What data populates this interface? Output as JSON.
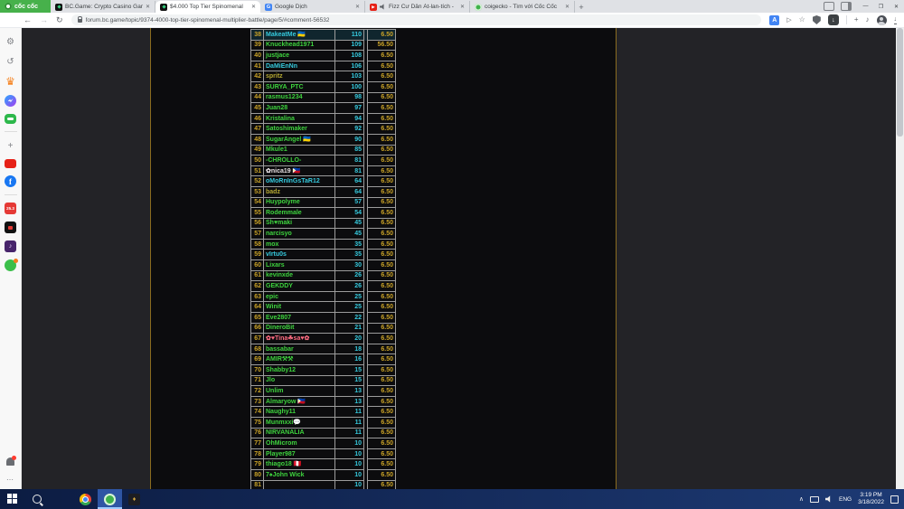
{
  "browser": {
    "brand": "cốc cốc",
    "tabs": [
      {
        "label": "BC.Game: Crypto Casino Gam",
        "favicon": "bcgame",
        "active": false,
        "audio": false
      },
      {
        "label": "$4.000 Top Tier Spinomenal",
        "favicon": "bcgame",
        "active": true,
        "audio": false
      },
      {
        "label": "Google Dịch",
        "favicon": "translate",
        "active": false,
        "audio": false
      },
      {
        "label": "Fizz Cư Dân Át-lan-tích -",
        "favicon": "youtube",
        "active": false,
        "audio": true
      },
      {
        "label": "coigecko - Tìm với Cốc Cốc",
        "favicon": "search",
        "active": false,
        "audio": false
      }
    ],
    "new_tab_label": "+",
    "strip_icons": [
      "screencast-icon",
      "panel-icon"
    ],
    "window_controls": [
      {
        "name": "minimize-button",
        "glyph": "—"
      },
      {
        "name": "maximize-button",
        "glyph": "❐"
      },
      {
        "name": "close-button",
        "glyph": "✕"
      }
    ],
    "toolbar": {
      "back_glyph": "←",
      "forward_glyph": "→",
      "reload_glyph": "↻",
      "url": "forum.bc.game/topic/9374-4000-top-tier-spinomenal-multiplier-battle/page/5/#comment-56532",
      "icons": [
        "translate-icon",
        "share-icon",
        "bookmark-star-icon",
        "adblock-shield-icon",
        "download-button-icon",
        "divider",
        "extension-icon",
        "media-icon",
        "profile-avatar",
        "downloads-tray-icon"
      ]
    }
  },
  "sidebar": {
    "top_icons": [
      "settings-icon",
      "history-icon",
      "crown-icon",
      "messenger-icon",
      "games-icon",
      "divider",
      "add-icon",
      "youtube-icon",
      "facebook-icon",
      "divider",
      "promo-25-3-icon",
      "video-app-icon",
      "music-app-icon",
      "chat-app-icon"
    ],
    "bottom_icons": [
      "bell-icon",
      "more-icon"
    ]
  },
  "leaderboard": {
    "rows": [
      {
        "rank": "38",
        "user": "MakeatMe 🇺🇦",
        "score": "110",
        "value": "6.50",
        "color": "cyan",
        "highlight": true
      },
      {
        "rank": "39",
        "user": "Knuckhead1971",
        "score": "109",
        "value": "56.50",
        "color": "green"
      },
      {
        "rank": "40",
        "user": "justjace",
        "score": "108",
        "value": "6.50",
        "color": "green"
      },
      {
        "rank": "41",
        "user": "DaMiEnNn",
        "score": "106",
        "value": "6.50",
        "color": "cyan"
      },
      {
        "rank": "42",
        "user": "spritz",
        "score": "103",
        "value": "6.50",
        "color": "olive"
      },
      {
        "rank": "43",
        "user": "SURYA_PTC",
        "score": "100",
        "value": "6.50",
        "color": "green"
      },
      {
        "rank": "44",
        "user": "rasmus1234",
        "score": "98",
        "value": "6.50",
        "color": "green"
      },
      {
        "rank": "45",
        "user": "Juan28",
        "score": "97",
        "value": "6.50",
        "color": "green"
      },
      {
        "rank": "46",
        "user": "Kristalina",
        "score": "94",
        "value": "6.50",
        "color": "green"
      },
      {
        "rank": "47",
        "user": "Satoshimaker",
        "score": "92",
        "value": "6.50",
        "color": "green"
      },
      {
        "rank": "48",
        "user": "SugarAngel 🇺🇦",
        "score": "90",
        "value": "6.50",
        "color": "green"
      },
      {
        "rank": "49",
        "user": "Mkule1",
        "score": "85",
        "value": "6.50",
        "color": "green"
      },
      {
        "rank": "50",
        "user": "-CHROLLO-",
        "score": "81",
        "value": "6.50",
        "color": "green"
      },
      {
        "rank": "51",
        "user": "✿nica19 🇵🇭",
        "score": "81",
        "value": "6.50",
        "color": "white"
      },
      {
        "rank": "52",
        "user": "oMoRnInGsTaR12",
        "score": "64",
        "value": "6.50",
        "color": "cyan"
      },
      {
        "rank": "53",
        "user": "badz",
        "score": "64",
        "value": "6.50",
        "color": "olive"
      },
      {
        "rank": "54",
        "user": "Huypolyme",
        "score": "57",
        "value": "6.50",
        "color": "green"
      },
      {
        "rank": "55",
        "user": "Rodemmale",
        "score": "54",
        "value": "6.50",
        "color": "green"
      },
      {
        "rank": "56",
        "user": "Sh♥maki",
        "score": "45",
        "value": "6.50",
        "color": "green"
      },
      {
        "rank": "57",
        "user": "narcisyo",
        "score": "45",
        "value": "6.50",
        "color": "green"
      },
      {
        "rank": "58",
        "user": "mox",
        "score": "35",
        "value": "6.50",
        "color": "green"
      },
      {
        "rank": "59",
        "user": "vIrtu0s",
        "score": "35",
        "value": "6.50",
        "color": "cyan"
      },
      {
        "rank": "60",
        "user": "Lixars",
        "score": "30",
        "value": "6.50",
        "color": "green"
      },
      {
        "rank": "61",
        "user": "kevinxde",
        "score": "26",
        "value": "6.50",
        "color": "green"
      },
      {
        "rank": "62",
        "user": "GEKDDY",
        "score": "26",
        "value": "6.50",
        "color": "green"
      },
      {
        "rank": "63",
        "user": "epic",
        "score": "25",
        "value": "6.50",
        "color": "green"
      },
      {
        "rank": "64",
        "user": "Winit",
        "score": "25",
        "value": "6.50",
        "color": "green"
      },
      {
        "rank": "65",
        "user": "Eve2807",
        "score": "22",
        "value": "6.50",
        "color": "green"
      },
      {
        "rank": "66",
        "user": "DineroBit",
        "score": "21",
        "value": "6.50",
        "color": "green"
      },
      {
        "rank": "67",
        "user": "✿♥Tina☘sa♥✿",
        "score": "20",
        "value": "6.50",
        "color": "pink"
      },
      {
        "rank": "68",
        "user": "bassabar",
        "score": "18",
        "value": "6.50",
        "color": "green"
      },
      {
        "rank": "69",
        "user": "AMIR⚒⚒",
        "score": "16",
        "value": "6.50",
        "color": "green"
      },
      {
        "rank": "70",
        "user": "Shabby12",
        "score": "15",
        "value": "6.50",
        "color": "green"
      },
      {
        "rank": "71",
        "user": "Jlo",
        "score": "15",
        "value": "6.50",
        "color": "green"
      },
      {
        "rank": "72",
        "user": "Unlim",
        "score": "13",
        "value": "6.50",
        "color": "green"
      },
      {
        "rank": "73",
        "user": "Almaryow 🇵🇭",
        "score": "13",
        "value": "6.50",
        "color": "green"
      },
      {
        "rank": "74",
        "user": "Naughy11",
        "score": "11",
        "value": "6.50",
        "color": "green"
      },
      {
        "rank": "75",
        "user": "Munmxxi💬",
        "score": "11",
        "value": "6.50",
        "color": "green"
      },
      {
        "rank": "76",
        "user": "NIRVANALIA",
        "score": "11",
        "value": "6.50",
        "color": "green"
      },
      {
        "rank": "77",
        "user": "OhMicrom",
        "score": "10",
        "value": "6.50",
        "color": "green"
      },
      {
        "rank": "78",
        "user": "Player987",
        "score": "10",
        "value": "6.50",
        "color": "green"
      },
      {
        "rank": "79",
        "user": "thiago18 🇵🇪",
        "score": "10",
        "value": "6.50",
        "color": "green"
      },
      {
        "rank": "80",
        "user": "7♠John Wick",
        "score": "10",
        "value": "6.50",
        "color": "green"
      },
      {
        "rank": "81",
        "user": "",
        "score": "10",
        "value": "6.50",
        "color": "green"
      }
    ]
  },
  "taskbar": {
    "apps": [
      {
        "name": "start-button"
      },
      {
        "name": "taskbar-search-button"
      },
      {
        "name": "file-explorer-app"
      },
      {
        "name": "chrome-app"
      },
      {
        "name": "coccoc-app",
        "active": true
      },
      {
        "name": "game-app"
      }
    ],
    "lang": "ENG",
    "time": "3:19 PM",
    "date": "3/18/2022"
  },
  "colors": {
    "brand_green": "#47b14b",
    "gold": "#c9a227",
    "user_green": "#3ed33e",
    "score_cyan": "#35c8dc",
    "page_border_gold": "#8a6c1f",
    "taskbar_blue": "#14295a"
  }
}
